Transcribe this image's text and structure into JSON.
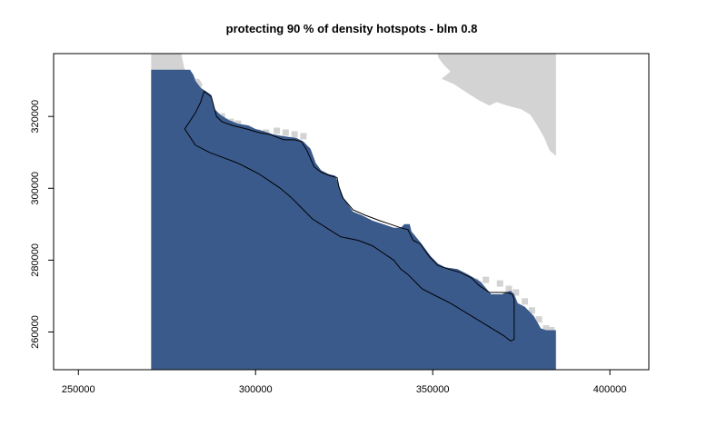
{
  "chart_data": {
    "type": "map",
    "title": "protecting 90 % of density hotspots - blm 0.8",
    "xlabel": "",
    "ylabel": "",
    "xlim": [
      243000,
      411000
    ],
    "ylim": [
      249500,
      337500
    ],
    "xticks": [
      {
        "value": 250000,
        "label": "250000"
      },
      {
        "value": 300000,
        "label": "300000"
      },
      {
        "value": 350000,
        "label": "350000"
      },
      {
        "value": 400000,
        "label": "400000"
      }
    ],
    "yticks": [
      {
        "value": 260000,
        "label": "260000"
      },
      {
        "value": 280000,
        "label": "280000"
      },
      {
        "value": 300000,
        "label": "300000"
      },
      {
        "value": 320000,
        "label": "320000"
      }
    ],
    "grid": false,
    "legend": "none",
    "layers": {
      "land_color": "#d3d3d3",
      "selected_color": "#3a5a8c",
      "outline_color": "#000000",
      "raster_extent": {
        "xmin": 270500,
        "xmax": 384800,
        "ymin": 249500,
        "ymax": 337500
      },
      "land_west": [
        [
          270500,
          337500
        ],
        [
          279000,
          337500
        ],
        [
          280000,
          333000
        ],
        [
          282000,
          332000
        ],
        [
          283000,
          330500
        ],
        [
          284000,
          330500
        ],
        [
          285000,
          329000
        ],
        [
          284500,
          327000
        ],
        [
          283500,
          326000
        ],
        [
          283000,
          324000
        ],
        [
          282000,
          323000
        ],
        [
          280000,
          322000
        ],
        [
          278000,
          320500
        ],
        [
          276000,
          319500
        ],
        [
          274000,
          318000
        ],
        [
          272000,
          317000
        ],
        [
          270500,
          316000
        ]
      ],
      "land_east": [
        [
          351500,
          337500
        ],
        [
          384800,
          337500
        ],
        [
          384800,
          309000
        ],
        [
          383000,
          310500
        ],
        [
          381500,
          314000
        ],
        [
          379500,
          317500
        ],
        [
          377500,
          320500
        ],
        [
          375000,
          322000
        ],
        [
          371000,
          323000
        ],
        [
          368000,
          324000
        ],
        [
          366000,
          323000
        ],
        [
          363000,
          324500
        ],
        [
          359000,
          327000
        ],
        [
          356000,
          329000
        ],
        [
          352500,
          330500
        ],
        [
          355000,
          332500
        ],
        [
          353000,
          334500
        ],
        [
          351500,
          336500
        ]
      ],
      "land_points": [
        [
          290500,
          320000
        ],
        [
          293000,
          318500
        ],
        [
          295000,
          318000
        ],
        [
          298000,
          316000
        ],
        [
          300500,
          315500
        ],
        [
          303000,
          315500
        ],
        [
          306000,
          316000
        ],
        [
          308500,
          315500
        ],
        [
          311000,
          315000
        ],
        [
          313500,
          314500
        ],
        [
          352000,
          275000
        ],
        [
          354000,
          274000
        ],
        [
          356000,
          272500
        ],
        [
          359000,
          272500
        ],
        [
          362000,
          274000
        ],
        [
          365000,
          274500
        ],
        [
          369000,
          273500
        ],
        [
          371500,
          272000
        ],
        [
          373500,
          271000
        ],
        [
          376000,
          268500
        ],
        [
          378000,
          266000
        ],
        [
          380000,
          263500
        ],
        [
          382000,
          261000
        ],
        [
          383500,
          260500
        ]
      ],
      "selected": [
        [
          270500,
          333000
        ],
        [
          281500,
          333000
        ],
        [
          282500,
          331500
        ],
        [
          283000,
          330000
        ],
        [
          284500,
          328000
        ],
        [
          286000,
          327000
        ],
        [
          287500,
          326000
        ],
        [
          288500,
          322000
        ],
        [
          290000,
          320500
        ],
        [
          292500,
          319000
        ],
        [
          295000,
          318000
        ],
        [
          298000,
          317500
        ],
        [
          300000,
          316500
        ],
        [
          302000,
          316000
        ],
        [
          305000,
          315000
        ],
        [
          308000,
          314500
        ],
        [
          311500,
          314000
        ],
        [
          313500,
          313000
        ],
        [
          315500,
          311000
        ],
        [
          317000,
          307000
        ],
        [
          318500,
          305000
        ],
        [
          320500,
          304000
        ],
        [
          322500,
          303500
        ],
        [
          324000,
          299500
        ],
        [
          325000,
          297000
        ],
        [
          327500,
          293500
        ],
        [
          330000,
          292500
        ],
        [
          333000,
          291000
        ],
        [
          336000,
          290000
        ],
        [
          339000,
          289000
        ],
        [
          341000,
          289000
        ],
        [
          342000,
          290000
        ],
        [
          343500,
          290000
        ],
        [
          344000,
          288000
        ],
        [
          346500,
          285000
        ],
        [
          349500,
          281000
        ],
        [
          351500,
          279000
        ],
        [
          353500,
          278000
        ],
        [
          357000,
          277500
        ],
        [
          360000,
          276000
        ],
        [
          363500,
          274000
        ],
        [
          366500,
          270500
        ],
        [
          369500,
          270500
        ],
        [
          372000,
          271500
        ],
        [
          373000,
          270500
        ],
        [
          374000,
          268000
        ],
        [
          376000,
          267000
        ],
        [
          378500,
          264500
        ],
        [
          380500,
          261000
        ],
        [
          382000,
          260500
        ],
        [
          384800,
          260500
        ],
        [
          384800,
          249500
        ],
        [
          270500,
          249500
        ]
      ],
      "reserve_outline": [
        [
          280000,
          316500
        ],
        [
          283000,
          321000
        ],
        [
          284500,
          324000
        ],
        [
          285500,
          327000
        ],
        [
          287500,
          325500
        ],
        [
          289000,
          320000
        ],
        [
          290500,
          318500
        ],
        [
          293500,
          317500
        ],
        [
          297500,
          316500
        ],
        [
          301000,
          315500
        ],
        [
          304000,
          315000
        ],
        [
          308000,
          313500
        ],
        [
          311000,
          313500
        ],
        [
          313000,
          313000
        ],
        [
          314500,
          310500
        ],
        [
          316500,
          306000
        ],
        [
          318500,
          304500
        ],
        [
          321000,
          303500
        ],
        [
          323000,
          303000
        ],
        [
          323500,
          300500
        ],
        [
          324500,
          297500
        ],
        [
          327500,
          294000
        ],
        [
          331000,
          292500
        ],
        [
          335000,
          291000
        ],
        [
          338000,
          290000
        ],
        [
          341000,
          289000
        ],
        [
          343000,
          288500
        ],
        [
          344500,
          285500
        ],
        [
          346500,
          284500
        ],
        [
          349000,
          281000
        ],
        [
          351500,
          278500
        ],
        [
          354500,
          277500
        ],
        [
          358000,
          276500
        ],
        [
          361000,
          275000
        ],
        [
          363000,
          273000
        ],
        [
          366000,
          271000
        ],
        [
          368500,
          271000
        ],
        [
          371000,
          271000
        ],
        [
          372500,
          270500
        ],
        [
          373000,
          269000
        ],
        [
          373000,
          258000
        ],
        [
          372000,
          257500
        ],
        [
          370000,
          259000
        ],
        [
          365000,
          262000
        ],
        [
          360000,
          265000
        ],
        [
          355000,
          268000
        ],
        [
          350000,
          270500
        ],
        [
          347000,
          272000
        ],
        [
          345000,
          274000
        ],
        [
          343000,
          276000
        ],
        [
          341000,
          277500
        ],
        [
          339000,
          280000
        ],
        [
          336000,
          282000
        ],
        [
          333000,
          284000
        ],
        [
          329000,
          285500
        ],
        [
          324000,
          286500
        ],
        [
          320000,
          289000
        ],
        [
          316000,
          291500
        ],
        [
          313000,
          294500
        ],
        [
          310000,
          297500
        ],
        [
          307000,
          300000
        ],
        [
          304000,
          302000
        ],
        [
          301000,
          304000
        ],
        [
          298000,
          305500
        ],
        [
          295000,
          307000
        ],
        [
          291000,
          308500
        ],
        [
          287000,
          310000
        ],
        [
          283000,
          312000
        ],
        [
          280000,
          316500
        ]
      ]
    }
  }
}
